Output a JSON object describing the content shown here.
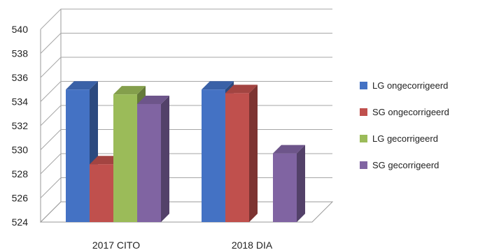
{
  "chart_data": {
    "type": "bar",
    "title": "",
    "xlabel": "",
    "ylabel": "",
    "ylim": [
      524,
      540
    ],
    "yticks": [
      524,
      526,
      528,
      530,
      532,
      534,
      536,
      538,
      540
    ],
    "categories": [
      "2017 CITO",
      "2018 DIA"
    ],
    "grid": true,
    "legend_position": "right",
    "series": [
      {
        "name": "LG ongecorrigeerd",
        "color": "#4472C4",
        "values": [
          535.0,
          535.0
        ]
      },
      {
        "name": "SG ongecorrigeerd",
        "color": "#C0504D",
        "values": [
          528.8,
          534.7
        ]
      },
      {
        "name": "LG gecorrigeerd",
        "color": "#9BBB59",
        "values": [
          534.6,
          null
        ]
      },
      {
        "name": "SG gecorrigeerd",
        "color": "#8064A2",
        "values": [
          533.8,
          529.7
        ]
      }
    ]
  }
}
